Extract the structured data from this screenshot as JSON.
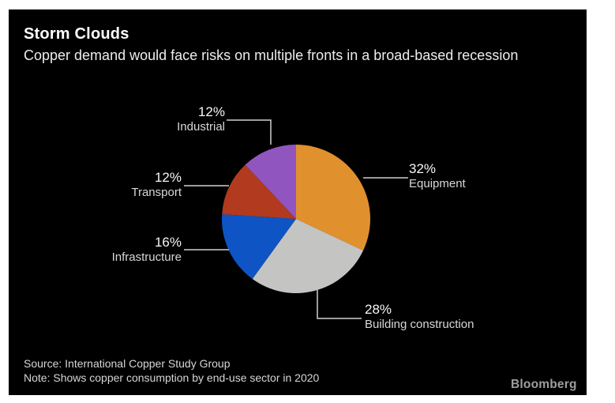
{
  "header": {
    "title": "Storm Clouds",
    "subtitle": "Copper demand would face risks on multiple fronts in a broad-based recession"
  },
  "chart_data": {
    "type": "pie",
    "title": "Storm Clouds",
    "subtitle": "Copper demand would face risks on multiple fronts in a broad-based recession",
    "categories": [
      "Equipment",
      "Building construction",
      "Infrastructure",
      "Transport",
      "Industrial"
    ],
    "values": [
      32,
      28,
      16,
      12,
      12
    ],
    "unit": "%",
    "colors": [
      "#E0912E",
      "#C4C4C2",
      "#0E54C4",
      "#B23A1E",
      "#9155C0"
    ],
    "start_angle_deg": -90,
    "direction": "clockwise",
    "legend_position": "callout-labels",
    "note": "Shows copper consumption by end-use sector in 2020",
    "source": "International Copper Study Group"
  },
  "labels": {
    "equipment": {
      "pct": "32%",
      "name": "Equipment"
    },
    "building": {
      "pct": "28%",
      "name": "Building construction"
    },
    "infrastructure": {
      "pct": "16%",
      "name": "Infrastructure"
    },
    "transport": {
      "pct": "12%",
      "name": "Transport"
    },
    "industrial": {
      "pct": "12%",
      "name": "Industrial"
    }
  },
  "footer": {
    "source": "Source: International Copper Study Group",
    "note": "Note: Shows copper consumption by end-use sector in 2020",
    "brand": "Bloomberg"
  },
  "colors": {
    "background": "#000000",
    "frame": "#FFFFFF",
    "title_text": "#FFFFFF",
    "subtitle_text": "#EDEDED",
    "pct_text": "#F7F7F7",
    "name_text": "#D8D8D8",
    "leader_line": "#CFCFCF",
    "footer_text": "#D6D6D6",
    "brand_text": "#9E9E9E"
  }
}
